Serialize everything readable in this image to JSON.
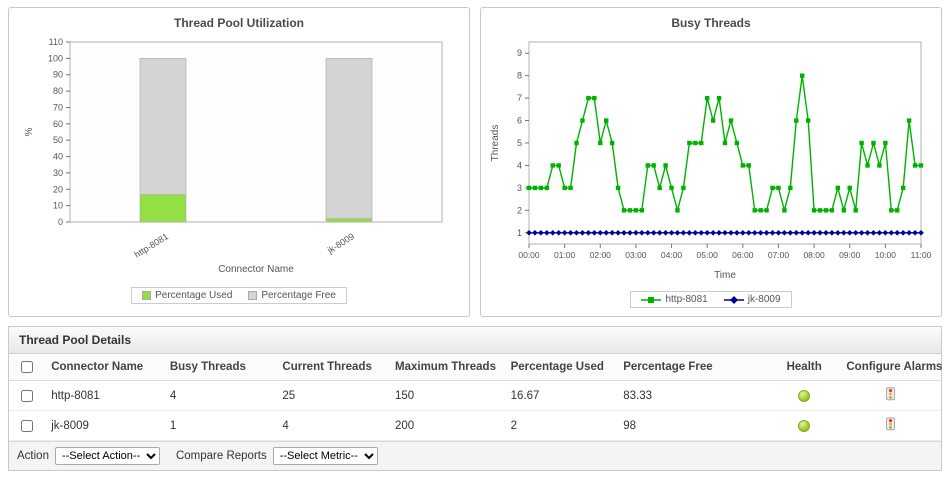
{
  "chart_data": [
    {
      "type": "bar",
      "stacked": true,
      "title": "Thread Pool Utilization",
      "categories": [
        "http-8081",
        "jk-8009"
      ],
      "series": [
        {
          "name": "Percentage Used",
          "values": [
            16.67,
            2
          ],
          "color": "#94E044"
        },
        {
          "name": "Percentage Free",
          "values": [
            83.33,
            98
          ],
          "color": "#D4D4D4"
        }
      ],
      "xlabel": "Connector Name",
      "ylabel": "%",
      "ylim": [
        0,
        110
      ],
      "ytick_step": 10,
      "grid": false,
      "legend_position": "bottom"
    },
    {
      "type": "line",
      "title": "Busy Threads",
      "xlabel": "Time",
      "ylabel": "Threads",
      "ylim": [
        0.5,
        9.5
      ],
      "yticks": [
        1,
        2,
        3,
        4,
        5,
        6,
        7,
        8,
        9
      ],
      "x_tick_labels": [
        "00:00",
        "01:00",
        "02:00",
        "03:00",
        "04:00",
        "05:00",
        "06:00",
        "07:00",
        "08:00",
        "09:00",
        "10:00",
        "11:00"
      ],
      "x_tick_every": 6,
      "grid": false,
      "legend_position": "bottom",
      "series": [
        {
          "name": "http-8081",
          "color": "#00B200",
          "marker": "square",
          "values": [
            3,
            3,
            3,
            3,
            4,
            4,
            3,
            3,
            5,
            6,
            7,
            7,
            5,
            6,
            5,
            3,
            2,
            2,
            2,
            2,
            4,
            4,
            3,
            4,
            3,
            2,
            3,
            5,
            5,
            5,
            7,
            6,
            7,
            5,
            6,
            5,
            4,
            4,
            2,
            2,
            2,
            3,
            3,
            2,
            3,
            6,
            8,
            6,
            2,
            2,
            2,
            2,
            3,
            2,
            3,
            2,
            5,
            4,
            5,
            4,
            5,
            2,
            2,
            3,
            6,
            4,
            4
          ]
        },
        {
          "name": "jk-8009",
          "color": "#000099",
          "marker": "diamond",
          "values": [
            1,
            1,
            1,
            1,
            1,
            1,
            1,
            1,
            1,
            1,
            1,
            1,
            1,
            1,
            1,
            1,
            1,
            1,
            1,
            1,
            1,
            1,
            1,
            1,
            1,
            1,
            1,
            1,
            1,
            1,
            1,
            1,
            1,
            1,
            1,
            1,
            1,
            1,
            1,
            1,
            1,
            1,
            1,
            1,
            1,
            1,
            1,
            1,
            1,
            1,
            1,
            1,
            1,
            1,
            1,
            1,
            1,
            1,
            1,
            1,
            1,
            1,
            1,
            1,
            1,
            1,
            1
          ]
        }
      ]
    }
  ],
  "table": {
    "title": "Thread Pool Details",
    "columns": [
      "Connector Name",
      "Busy Threads",
      "Current Threads",
      "Maximum Threads",
      "Percentage Used",
      "Percentage Free",
      "Health",
      "Configure Alarms"
    ],
    "rows": [
      {
        "connector": "http-8081",
        "busy": "4",
        "current": "25",
        "max": "150",
        "used": "16.67",
        "free": "83.33",
        "health": "ok"
      },
      {
        "connector": "jk-8009",
        "busy": "1",
        "current": "4",
        "max": "200",
        "used": "2",
        "free": "98",
        "health": "ok"
      }
    ]
  },
  "icons": {
    "health": "health-ok-icon",
    "alarm": "configure-alarms-icon"
  },
  "actions": {
    "action_label": "Action",
    "action_value": "--Select Action--",
    "compare_label": "Compare Reports",
    "compare_value": "--Select Metric--"
  },
  "colors": {
    "used_green": "#94E044",
    "free_gray": "#D4D4D4",
    "line_green": "#00B200",
    "line_blue": "#000099",
    "health_green": "#9ACD32"
  }
}
